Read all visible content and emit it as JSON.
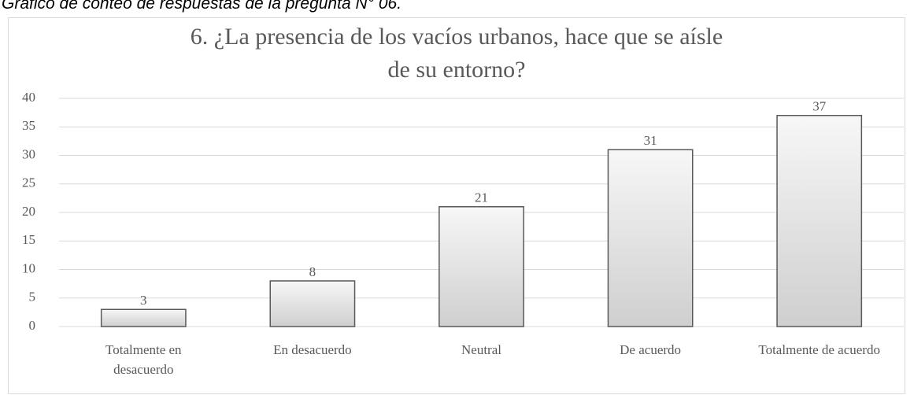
{
  "caption": "Gráfico de conteo de respuestas de la pregunta N° 06.",
  "chart_data": {
    "type": "bar",
    "title": "6. ¿La presencia de los vacíos urbanos, hace que se aísle de su entorno?",
    "categories": [
      "Totalmente en desacuerdo",
      "En desacuerdo",
      "Neutral",
      "De acuerdo",
      "Totalmente de acuerdo"
    ],
    "values": [
      3,
      8,
      21,
      31,
      37
    ],
    "color": "#595959",
    "ylim": [
      0,
      40
    ],
    "yticks": [
      0,
      5,
      10,
      15,
      20,
      25,
      30,
      35,
      40
    ],
    "grid": true
  }
}
